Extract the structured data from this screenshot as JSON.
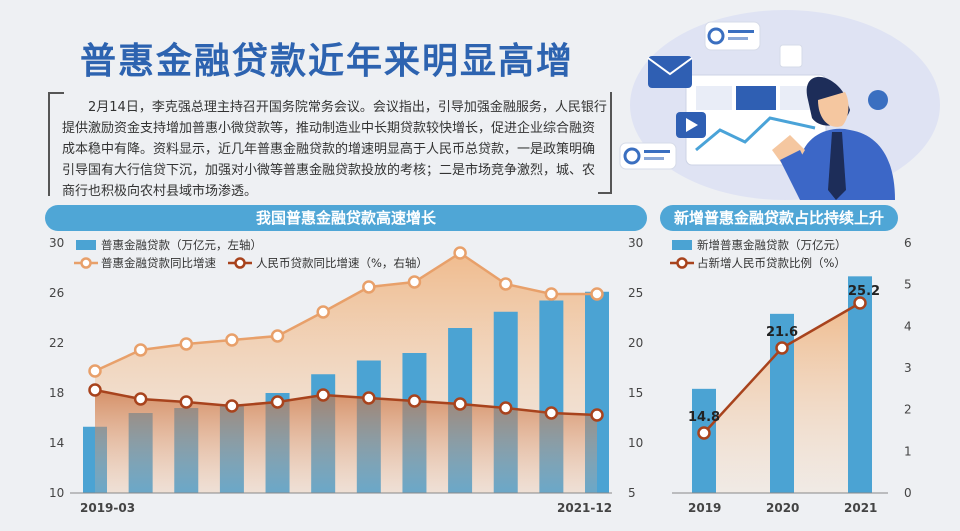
{
  "header": {
    "title": "普惠金融贷款近年来明显高增",
    "intro": "2月14日，李克强总理主持召开国务院常务会议。会议指出，引导加强金融服务，人民银行提供激励资金支持增加普惠小微贷款等，推动制造业中长期贷款较快增长，促进企业综合融资成本稳中有降。资料显示，近几年普惠金融贷款的增速明显高于人民币总贷款，一是政策明确引导国有大行信贷下沉，加强对小微等普惠金融贷款投放的考核；二是市场竞争激烈，城、农商行也积极向农村县域市场渗透。"
  },
  "colors": {
    "bar": "#4ba3d3",
    "orange_line": "#e8a06a",
    "brown_line": "#a8431d",
    "banner": "#4fa6d6"
  },
  "chart_data": [
    {
      "type": "bar",
      "title": "我国普惠金融贷款高速增长",
      "x_tick_labels": [
        "2019-03",
        "2021-12"
      ],
      "legend": [
        "普惠金融贷款（万亿元，左轴）",
        "普惠金融贷款同比增速",
        "人民币贷款同比增速（%，右轴）"
      ],
      "legend_position": "top-left",
      "left_axis": {
        "ylim": [
          10,
          30
        ],
        "ticks": [
          10,
          14,
          18,
          22,
          26,
          30
        ]
      },
      "right_axis": {
        "ylim": [
          5,
          30
        ],
        "ticks": [
          5,
          10,
          15,
          20,
          25,
          30
        ]
      },
      "series": [
        {
          "name": "普惠金融贷款（万亿元，左轴）",
          "type": "bar",
          "axis": "left",
          "values": [
            15.3,
            16.4,
            16.8,
            17.1,
            18.0,
            19.5,
            20.6,
            21.2,
            23.2,
            24.5,
            25.4,
            26.1
          ]
        },
        {
          "name": "普惠金融贷款同比增速",
          "type": "line",
          "axis": "right",
          "values": [
            17.2,
            19.3,
            19.9,
            20.3,
            20.7,
            23.1,
            25.6,
            26.1,
            29.0,
            25.9,
            24.9,
            24.9
          ]
        },
        {
          "name": "人民币贷款同比增速（%，右轴）",
          "type": "line",
          "axis": "right",
          "values": [
            15.3,
            14.4,
            14.1,
            13.7,
            14.1,
            14.8,
            14.5,
            14.2,
            13.9,
            13.5,
            13.0,
            12.8
          ]
        }
      ]
    },
    {
      "type": "bar",
      "title": "新增普惠金融贷款占比持续上升",
      "categories": [
        "2019",
        "2020",
        "2021"
      ],
      "legend": [
        "新增普惠金融贷款（万亿元）",
        "占新增人民币贷款比例（%）"
      ],
      "legend_position": "top-left",
      "left_axis": {
        "ylim": [
          10,
          30
        ]
      },
      "right_axis": {
        "ylim": [
          0,
          6
        ],
        "ticks": [
          0,
          1,
          2,
          3,
          4,
          5,
          6
        ]
      },
      "series": [
        {
          "name": "新增普惠金融贷款（万亿元）",
          "type": "bar",
          "axis": "right",
          "values": [
            2.5,
            4.3,
            5.2
          ]
        },
        {
          "name": "占新增人民币贷款比例（%）",
          "type": "line",
          "axis": "left",
          "values": [
            14.8,
            21.6,
            25.2
          ],
          "labels": [
            "14.8",
            "21.6",
            "25.2"
          ]
        }
      ]
    }
  ]
}
